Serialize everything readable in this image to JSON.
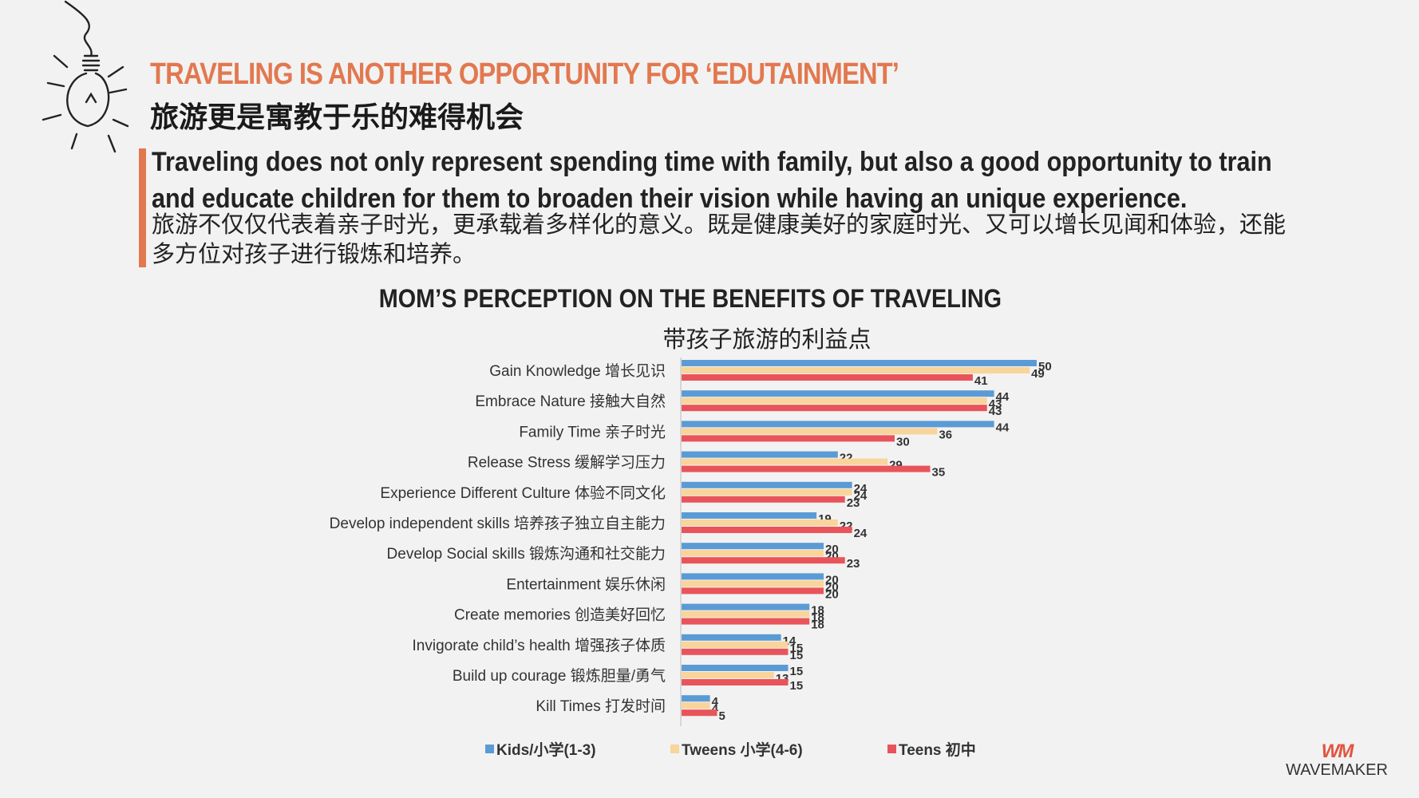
{
  "header": {
    "title_en": "TRAVELING IS ANOTHER OPPORTUNITY FOR ‘EDUTAINMENT’",
    "title_cn": "旅游更是寓教于乐的难得机会",
    "desc_en": "Traveling does not only represent spending time with family, but also a good opportunity to train and educate children for them to broaden their vision while having an unique experience.",
    "desc_cn": "旅游不仅仅代表着亲子时光，更承载着多样化的意义。既是健康美好的家庭时光、又可以增长见闻和体验，还能多方位对孩子进行锻炼和培养。"
  },
  "colors": {
    "accent": "#e2784f",
    "kids": "#5b9bd5",
    "tweens": "#f9d49b",
    "teens": "#e8545a"
  },
  "chart_data": {
    "type": "bar",
    "orientation": "horizontal",
    "title": "MOM’S PERCEPTION ON THE BENEFITS OF TRAVELING",
    "subtitle": "带孩子旅游的利益点",
    "categories": [
      "Gain Knowledge 增长见识",
      "Embrace Nature 接触大自然",
      "Family Time 亲子时光",
      "Release Stress 缓解学习压力",
      "Experience Different Culture 体验不同文化",
      "Develop independent skills 培养孩子独立自主能力",
      "Develop Social skills 锻炼沟通和社交能力",
      "Entertainment 娱乐休闲",
      "Create memories 创造美好回忆",
      "Invigorate child’s health 增强孩子体质",
      "Build up courage 锻炼胆量/勇气",
      "Kill Times 打发时间"
    ],
    "series": [
      {
        "name": "Kids/小学(1-3)",
        "values": [
          50,
          44,
          44,
          22,
          24,
          19,
          20,
          20,
          18,
          14,
          15,
          4
        ]
      },
      {
        "name": "Tweens 小学(4-6)",
        "values": [
          49,
          43,
          36,
          29,
          24,
          22,
          20,
          20,
          18,
          15,
          13,
          4
        ]
      },
      {
        "name": "Teens 初中",
        "values": [
          41,
          43,
          30,
          35,
          23,
          24,
          23,
          20,
          18,
          15,
          15,
          5
        ]
      }
    ],
    "xlim": [
      0,
      50
    ],
    "legend_position": "bottom"
  },
  "logo": {
    "mark": "WM",
    "text": "WAVEMAKER"
  }
}
